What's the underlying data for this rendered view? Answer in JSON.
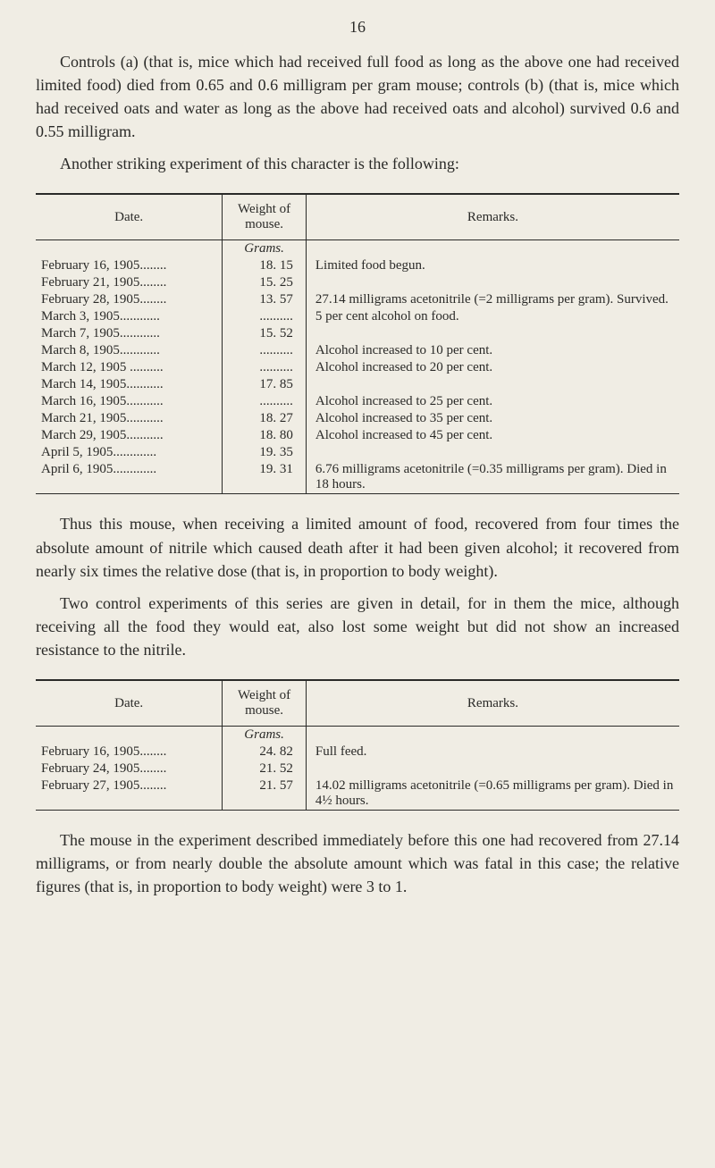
{
  "page_number": "16",
  "paragraphs": {
    "p1": "Controls (a) (that is, mice which had received full food as long as the above one had received limited food) died from 0.65 and 0.6 milligram per gram mouse; controls (b) (that is, mice which had received oats and water as long as the above had received oats and alcohol) sur­vived 0.6 and 0.55 milligram.",
    "p2": "Another striking experiment of this character is the following:",
    "p3": "Thus this mouse, when receiving a limited amount of food, recov­ered from four times the absolute amount of nitrile which caused death after it had been given alcohol; it recovered from nearly six times the relative dose (that is, in proportion to body weight).",
    "p4": "Two control experiments of this series are given in detail, for in them the mice, although receiving all the food they would eat, also lost some weight but did not show an increased resistance to the nitrile.",
    "p5": "The mouse in the experiment described immediately before this one had recovered from 27.14 milligrams, or from nearly double the abso­lute amount which was fatal in this case; the relative figures (that is, in proportion to body weight) were 3 to 1."
  },
  "table1": {
    "headers": {
      "col1": "Date.",
      "col2": "Weight of mouse.",
      "col3": "Remarks."
    },
    "units": "Grams.",
    "rows": [
      {
        "date": "February 16, 1905........",
        "weight": "18. 15",
        "remarks": "Limited food begun."
      },
      {
        "date": "February 21, 1905........",
        "weight": "15. 25",
        "remarks": ""
      },
      {
        "date": "February 28, 1905........",
        "weight": "13. 57",
        "remarks": "27.14 milligrams acetonitrile (=2 milligrams per gram). Survived."
      },
      {
        "date": "March 3, 1905............",
        "weight": "..........",
        "remarks": "5 per cent alcohol on food."
      },
      {
        "date": "March 7, 1905............",
        "weight": "15. 52",
        "remarks": ""
      },
      {
        "date": "March 8, 1905............",
        "weight": "..........",
        "remarks": "Alcohol increased to 10 per cent."
      },
      {
        "date": "March 12, 1905 ..........",
        "weight": "..........",
        "remarks": "Alcohol increased to 20 per cent."
      },
      {
        "date": "March 14, 1905...........",
        "weight": "17. 85",
        "remarks": ""
      },
      {
        "date": "March 16, 1905...........",
        "weight": "..........",
        "remarks": "Alcohol increased to 25 per cent."
      },
      {
        "date": "March 21, 1905...........",
        "weight": "18. 27",
        "remarks": "Alcohol increased to 35 per cent."
      },
      {
        "date": "March 29, 1905...........",
        "weight": "18. 80",
        "remarks": "Alcohol increased to 45 per cent."
      },
      {
        "date": "April 5, 1905.............",
        "weight": "19. 35",
        "remarks": ""
      },
      {
        "date": "April 6, 1905.............",
        "weight": "19. 31",
        "remarks": "6.76 milligrams acetonitrile (=0.35 milligrams per gram). Died in 18 hours."
      }
    ]
  },
  "table2": {
    "headers": {
      "col1": "Date.",
      "col2": "Weight of mouse.",
      "col3": "Remarks."
    },
    "units": "Grams.",
    "rows": [
      {
        "date": "February 16, 1905........",
        "weight": "24. 82",
        "remarks": "Full feed."
      },
      {
        "date": "February 24, 1905........",
        "weight": "21. 52",
        "remarks": ""
      },
      {
        "date": "February 27, 1905........",
        "weight": "21. 57",
        "remarks": "14.02 milligrams acetonitrile (=0.65 milligrams per gram). Died in 4½ hours."
      }
    ]
  }
}
